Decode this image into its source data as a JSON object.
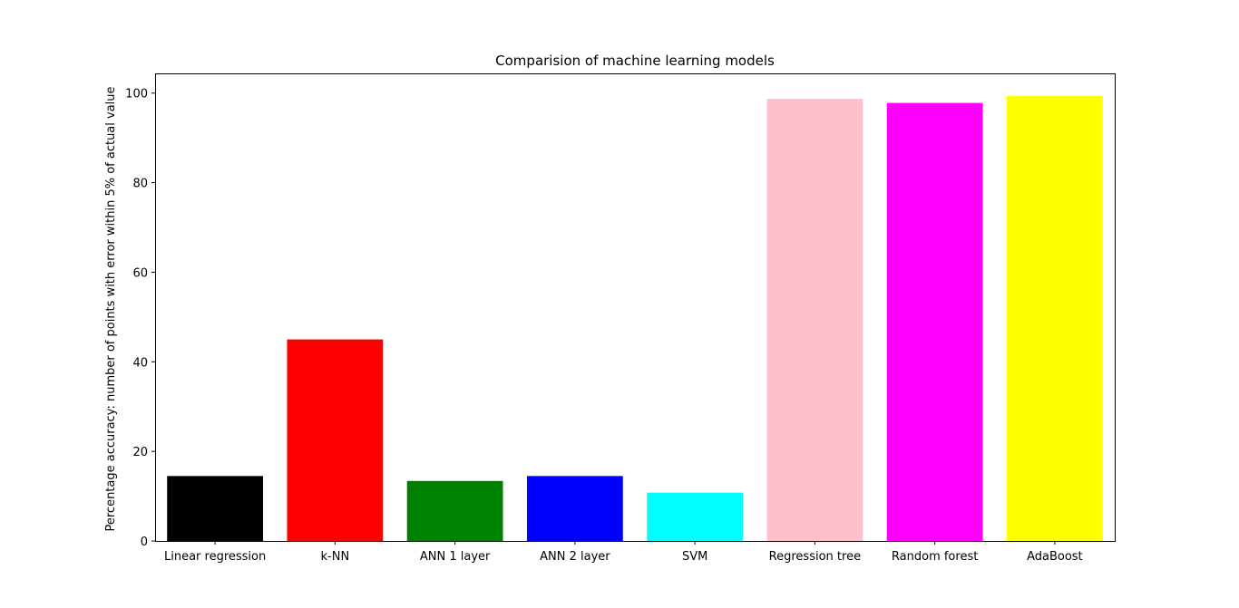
{
  "chart_data": {
    "type": "bar",
    "title": "Comparision of machine learning models",
    "xlabel": "",
    "ylabel": "Percentage accuracy: number of points with error within 5% of actual value",
    "categories": [
      "Linear regression",
      "k-NN",
      "ANN 1 layer",
      "ANN 2 layer",
      "SVM",
      "Regression tree",
      "Random forest",
      "AdaBoost"
    ],
    "values": [
      14.5,
      45.0,
      13.4,
      14.5,
      10.8,
      98.7,
      97.8,
      99.4
    ],
    "colors": [
      "#000000",
      "#ff0000",
      "#008000",
      "#0000ff",
      "#00ffff",
      "#ffc0cb",
      "#ff00ff",
      "#ffff00"
    ],
    "ylim": [
      0,
      104.4
    ],
    "yticks": [
      0,
      20,
      40,
      60,
      80,
      100
    ],
    "grid": false,
    "legend": "none"
  }
}
